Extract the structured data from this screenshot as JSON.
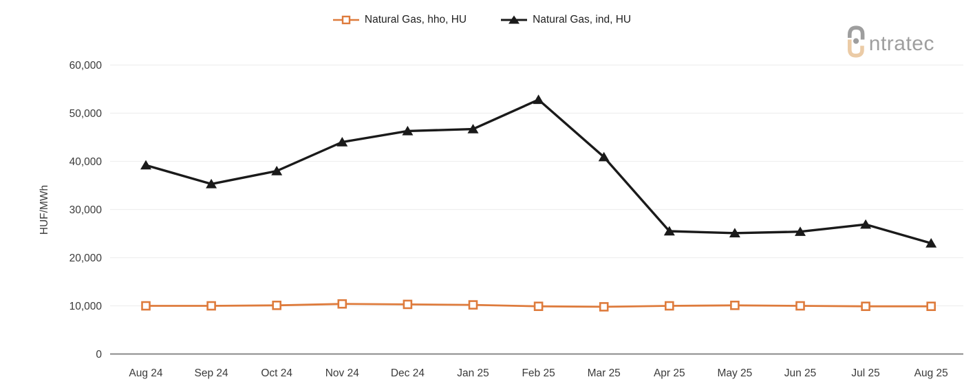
{
  "logo": {
    "brand": "intratec",
    "text": "ntratec",
    "text_color": "#9E9E9E",
    "accent_color": "#EBCBA6"
  },
  "chart_data": {
    "type": "line",
    "title": "",
    "xlabel": "",
    "ylabel": "HUF/MWh",
    "ylim": [
      0,
      60000
    ],
    "ytick_step": 10000,
    "ytick_labels": [
      "0",
      "10,000",
      "20,000",
      "30,000",
      "40,000",
      "50,000",
      "60,000"
    ],
    "grid": "horizontal",
    "legend_position": "top",
    "axis_text_color": "#3a3a3a",
    "gridline_color": "#efefef",
    "axis_line_color": "#8a8a8a",
    "categories": [
      "Aug 24",
      "Sep 24",
      "Oct 24",
      "Nov 24",
      "Dec 24",
      "Jan 25",
      "Feb 25",
      "Mar 25",
      "Apr 25",
      "May 25",
      "Jun 25",
      "Jul 25",
      "Aug 25"
    ],
    "series": [
      {
        "name": "Natural Gas, hho, HU",
        "color": "#DE7B3C",
        "marker": "square",
        "marker_fill": "#FFFFFF",
        "values": [
          10000,
          10000,
          10100,
          10400,
          10300,
          10200,
          9900,
          9800,
          10000,
          10100,
          10000,
          9900,
          9900
        ]
      },
      {
        "name": "Natural Gas, ind, HU",
        "color": "#1A1A1A",
        "marker": "triangle",
        "marker_fill": "#1A1A1A",
        "values": [
          39200,
          35300,
          38000,
          44000,
          46300,
          46700,
          52800,
          40900,
          25500,
          25100,
          25400,
          26900,
          23000
        ]
      }
    ]
  }
}
